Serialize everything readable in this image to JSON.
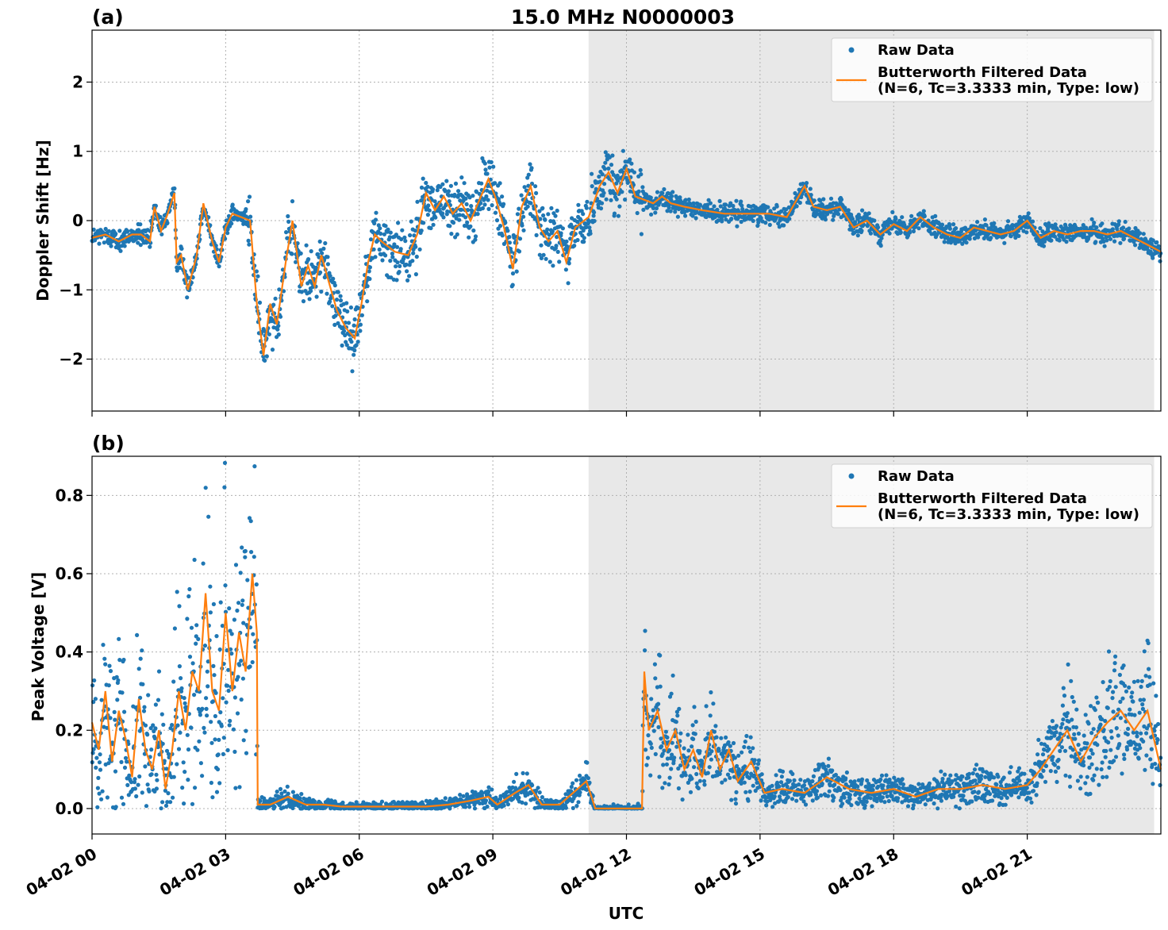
{
  "figure": {
    "title": "15.0 MHz N0000003",
    "xlabel": "UTC",
    "x_tick_labels": [
      "04-02 00",
      "04-02 03",
      "04-02 06",
      "04-02 09",
      "04-02 12",
      "04-02 15",
      "04-02 18",
      "04-02 21"
    ]
  },
  "colors": {
    "raw": "#1f77b4",
    "filtered": "#ff7f0e",
    "night_shade": "#e8e8e8",
    "grid": "#b0b0b0"
  },
  "chart_data": [
    {
      "type": "scatter",
      "panel_label": "(a)",
      "ylabel": "Doppler Shift [Hz]",
      "x_unit": "hours UTC since 04-02 00:00",
      "xlim": [
        0,
        24
      ],
      "ylim": [
        -2.75,
        2.75
      ],
      "y_ticks": [
        -2,
        -1,
        0,
        1,
        2
      ],
      "y_tick_labels": [
        "−2",
        "−1",
        "0",
        "1",
        "2"
      ],
      "grid": true,
      "legend_position": "upper right",
      "shaded_x_range": [
        11.15,
        23.85
      ],
      "legend": {
        "raw_label": "Raw Data",
        "filtered_label_line1": "Butterworth Filtered Data",
        "filtered_label_line2": "(N=6, Tc=3.3333 min, Type: low)"
      },
      "series": [
        {
          "name": "Butterworth Filtered Data (N=6, Tc=3.3333 min, Type: low)",
          "x": [
            0.0,
            0.3,
            0.6,
            0.9,
            1.1,
            1.3,
            1.4,
            1.55,
            1.7,
            1.85,
            1.9,
            2.0,
            2.15,
            2.35,
            2.5,
            2.7,
            2.85,
            3.0,
            3.15,
            3.35,
            3.55,
            3.7,
            3.85,
            4.0,
            4.15,
            4.35,
            4.5,
            4.7,
            4.85,
            5.0,
            5.15,
            5.3,
            5.5,
            5.7,
            5.9,
            6.05,
            6.2,
            6.35,
            6.5,
            6.8,
            7.1,
            7.3,
            7.5,
            7.7,
            7.9,
            8.1,
            8.3,
            8.5,
            8.7,
            8.9,
            9.05,
            9.25,
            9.45,
            9.65,
            9.85,
            10.05,
            10.25,
            10.45,
            10.65,
            10.85,
            11.15,
            11.4,
            11.6,
            11.8,
            12.0,
            12.2,
            12.4,
            12.6,
            12.8,
            13.0,
            13.3,
            13.7,
            14.2,
            14.7,
            15.2,
            15.6,
            16.0,
            16.2,
            16.5,
            16.8,
            17.1,
            17.4,
            17.7,
            18.0,
            18.3,
            18.6,
            18.9,
            19.2,
            19.5,
            19.8,
            20.1,
            20.4,
            20.7,
            21.0,
            21.3,
            21.6,
            21.9,
            22.2,
            22.5,
            22.8,
            23.1,
            23.4,
            23.7,
            24.0
          ],
          "y": [
            -0.25,
            -0.2,
            -0.3,
            -0.2,
            -0.2,
            -0.3,
            0.2,
            -0.15,
            0.1,
            0.4,
            -0.6,
            -0.5,
            -1.0,
            -0.5,
            0.25,
            -0.3,
            -0.6,
            -0.1,
            0.1,
            0.05,
            0.0,
            -1.2,
            -1.95,
            -1.2,
            -1.5,
            -0.6,
            0.0,
            -0.95,
            -0.65,
            -0.95,
            -0.5,
            -0.85,
            -1.3,
            -1.55,
            -1.7,
            -1.2,
            -0.6,
            -0.2,
            -0.3,
            -0.45,
            -0.5,
            -0.2,
            0.4,
            0.15,
            0.35,
            0.1,
            0.25,
            0.0,
            0.3,
            0.6,
            0.35,
            -0.1,
            -0.7,
            0.2,
            0.5,
            -0.1,
            -0.3,
            -0.15,
            -0.6,
            -0.1,
            0.05,
            0.5,
            0.7,
            0.4,
            0.75,
            0.35,
            0.3,
            0.25,
            0.35,
            0.25,
            0.2,
            0.15,
            0.1,
            0.1,
            0.1,
            0.05,
            0.5,
            0.2,
            0.15,
            0.2,
            -0.1,
            0.0,
            -0.2,
            -0.05,
            -0.15,
            0.05,
            -0.1,
            -0.2,
            -0.25,
            -0.1,
            -0.15,
            -0.2,
            -0.15,
            0.0,
            -0.25,
            -0.15,
            -0.2,
            -0.15,
            -0.15,
            -0.2,
            -0.15,
            -0.25,
            -0.35,
            -0.45
          ]
        }
      ]
    },
    {
      "type": "scatter",
      "panel_label": "(b)",
      "ylabel": "Peak Voltage [V]",
      "x_unit": "hours UTC since 04-02 00:00",
      "xlim": [
        0,
        24
      ],
      "ylim": [
        -0.065,
        0.9
      ],
      "y_ticks": [
        0,
        0.2,
        0.4,
        0.6,
        0.8
      ],
      "y_tick_labels": [
        "0.0",
        "0.2",
        "0.4",
        "0.6",
        "0.8"
      ],
      "grid": true,
      "legend_position": "upper right",
      "shaded_x_range": [
        11.15,
        23.85
      ],
      "legend": {
        "raw_label": "Raw Data",
        "filtered_label_line1": "Butterworth Filtered Data",
        "filtered_label_line2": "(N=6, Tc=3.3333 min, Type: low)"
      },
      "series": [
        {
          "name": "Butterworth Filtered Data (N=6, Tc=3.3333 min, Type: low)",
          "x": [
            0.0,
            0.15,
            0.3,
            0.45,
            0.6,
            0.75,
            0.9,
            1.05,
            1.2,
            1.35,
            1.5,
            1.65,
            1.8,
            1.95,
            2.1,
            2.25,
            2.4,
            2.55,
            2.7,
            2.85,
            3.0,
            3.15,
            3.3,
            3.45,
            3.6,
            3.7,
            3.72,
            4.0,
            4.4,
            4.8,
            5.2,
            5.6,
            6.0,
            6.5,
            7.0,
            7.5,
            8.0,
            8.5,
            8.9,
            9.1,
            9.5,
            9.8,
            10.1,
            10.5,
            10.9,
            11.1,
            11.3,
            11.6,
            12.0,
            12.3,
            12.35,
            12.4,
            12.5,
            12.7,
            12.9,
            13.1,
            13.3,
            13.5,
            13.7,
            13.9,
            14.1,
            14.3,
            14.5,
            14.8,
            15.1,
            15.5,
            16.0,
            16.5,
            17.0,
            17.5,
            18.0,
            18.5,
            19.0,
            19.5,
            20.0,
            20.5,
            21.0,
            21.3,
            21.6,
            21.9,
            22.2,
            22.5,
            22.8,
            23.1,
            23.4,
            23.7,
            24.0
          ],
          "y": [
            0.22,
            0.15,
            0.3,
            0.12,
            0.25,
            0.18,
            0.08,
            0.28,
            0.15,
            0.1,
            0.2,
            0.05,
            0.15,
            0.3,
            0.2,
            0.35,
            0.3,
            0.55,
            0.3,
            0.25,
            0.5,
            0.3,
            0.45,
            0.35,
            0.6,
            0.45,
            0.01,
            0.01,
            0.03,
            0.01,
            0.01,
            0.005,
            0.005,
            0.005,
            0.005,
            0.005,
            0.01,
            0.02,
            0.03,
            0.01,
            0.04,
            0.06,
            0.01,
            0.01,
            0.05,
            0.07,
            0.0,
            0.0,
            0.0,
            0.0,
            0.0,
            0.35,
            0.2,
            0.25,
            0.15,
            0.2,
            0.1,
            0.15,
            0.08,
            0.2,
            0.1,
            0.15,
            0.07,
            0.12,
            0.04,
            0.05,
            0.04,
            0.08,
            0.05,
            0.04,
            0.05,
            0.03,
            0.05,
            0.05,
            0.06,
            0.05,
            0.06,
            0.1,
            0.15,
            0.2,
            0.12,
            0.18,
            0.22,
            0.25,
            0.2,
            0.25,
            0.1
          ]
        }
      ]
    }
  ]
}
